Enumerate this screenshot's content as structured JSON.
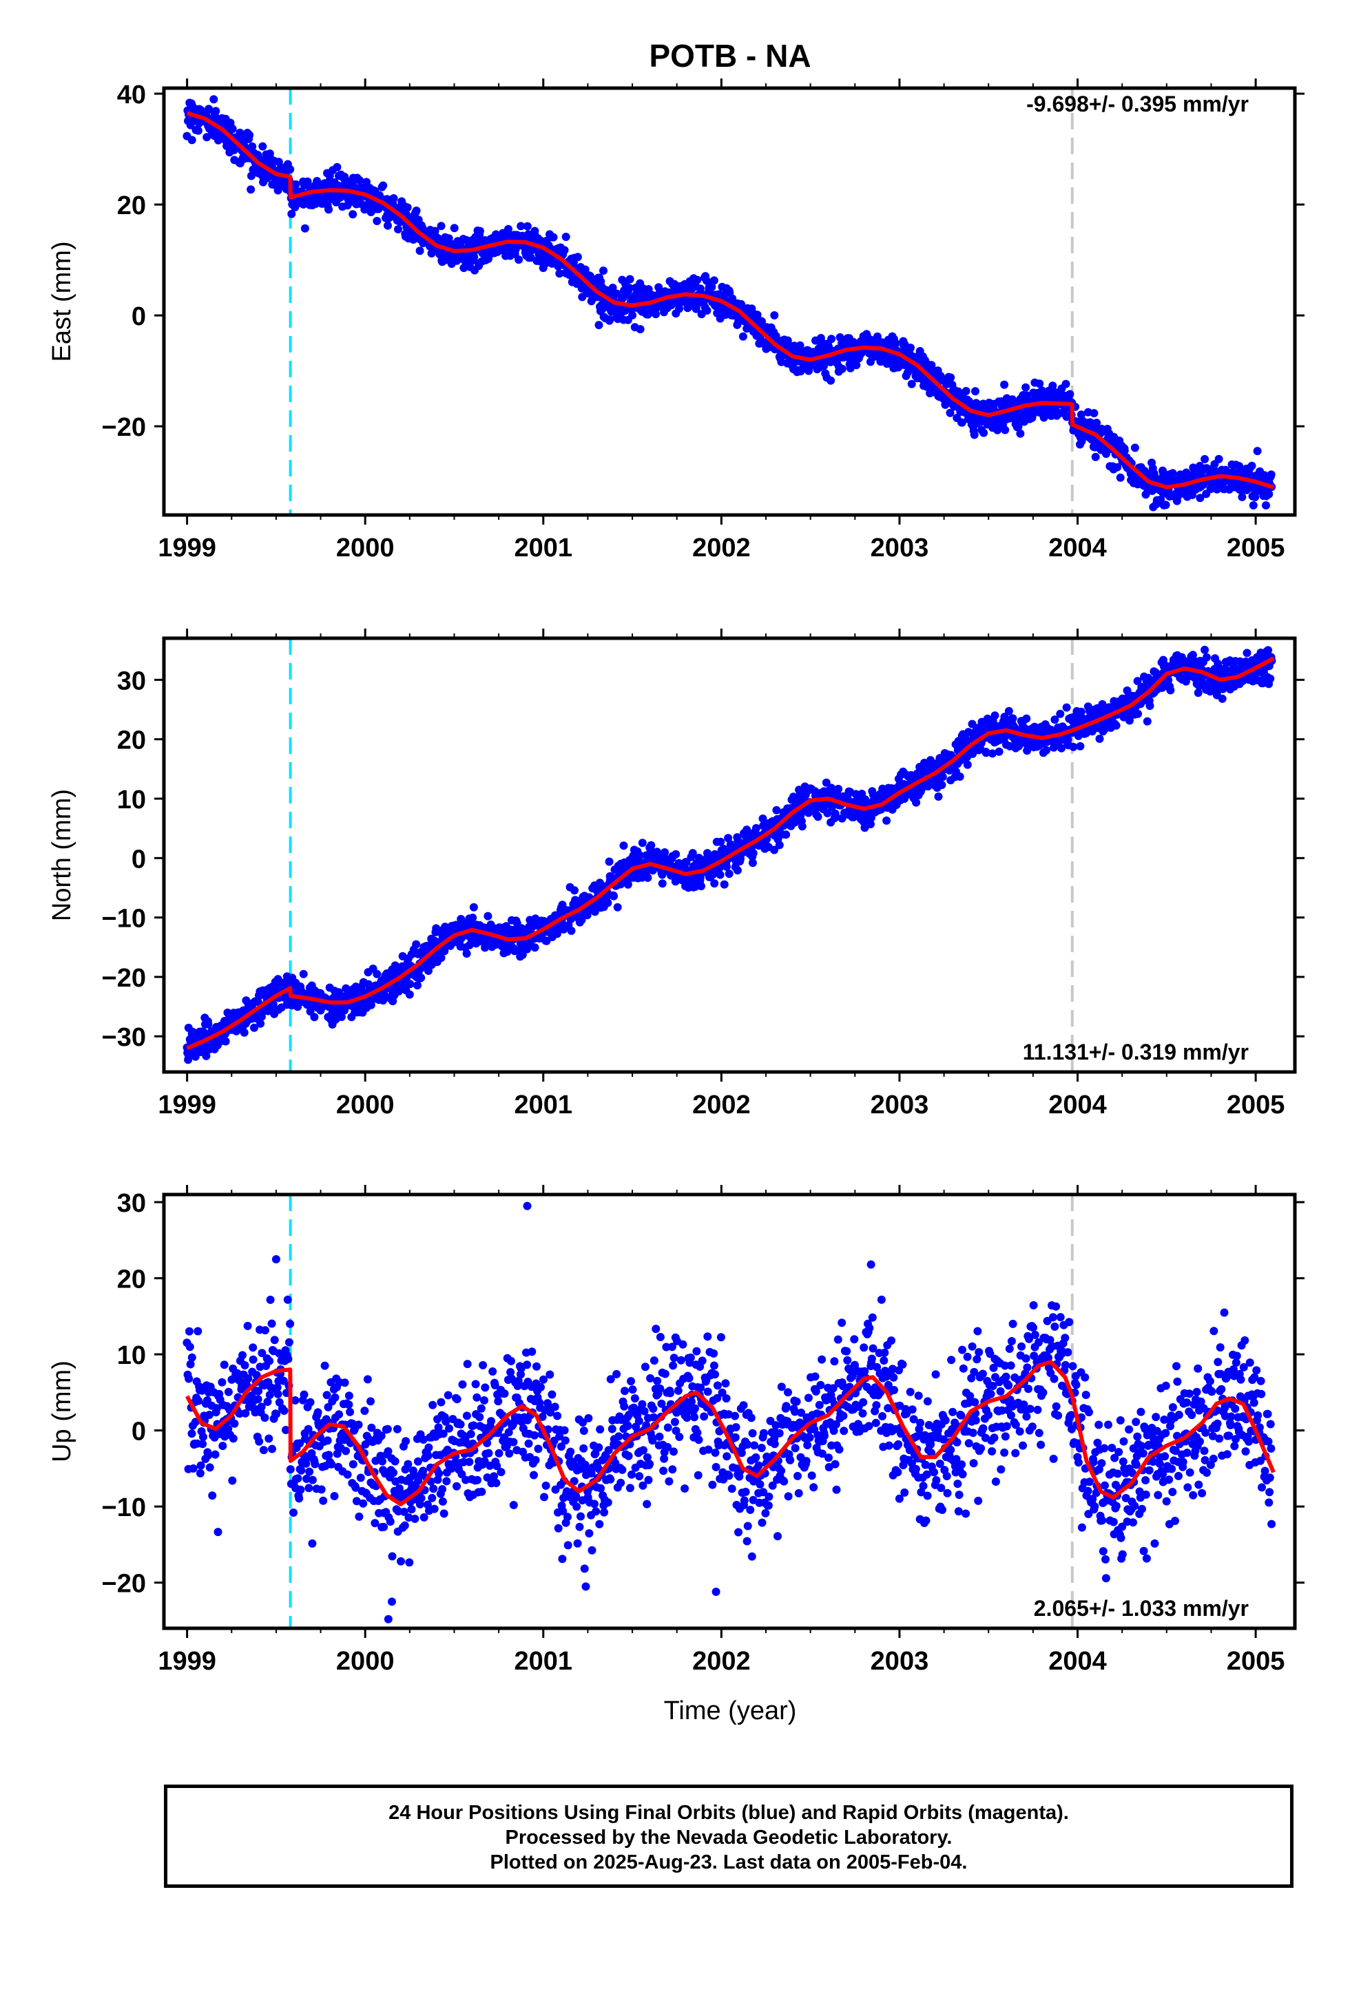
{
  "title": "POTB - NA",
  "footer": {
    "line1": "24 Hour Positions Using Final Orbits (blue) and Rapid Orbits (magenta).",
    "line2": "Processed by the Nevada Geodetic Laboratory.",
    "line3": "Plotted on 2025-Aug-23. Last data on 2005-Feb-04."
  },
  "colors": {
    "points": "#0000ff",
    "model": "#ff0000",
    "equipment_change_line": "#00e5ff",
    "other_step_line": "#c8c8c8",
    "frame": "#000000"
  },
  "chart_data": [
    {
      "type": "scatter",
      "component": "east",
      "ylabel": "East (mm)",
      "xlabel": "",
      "xlim": [
        1998.87,
        2005.22
      ],
      "ylim": [
        -36,
        41
      ],
      "x_ticks": [
        1999,
        2000,
        2001,
        2002,
        2003,
        2004,
        2005
      ],
      "y_ticks": [
        -20,
        0,
        20,
        40
      ],
      "rate_label": "-9.698+/- 0.395 mm/yr",
      "rate_label_position": "top-right",
      "vertical_lines": [
        {
          "x": 1999.58,
          "style": "dashed",
          "color": "cyan"
        },
        {
          "x": 2003.97,
          "style": "dashed",
          "color": "gray"
        }
      ],
      "series": [
        {
          "color": "red",
          "x": [
            1999.0,
            1999.1,
            1999.2,
            1999.3,
            1999.4,
            1999.5,
            1999.579,
            1999.581,
            1999.7,
            1999.8,
            1999.9,
            2000.0,
            2000.1,
            2000.2,
            2000.3,
            2000.4,
            2000.5,
            2000.6,
            2000.7,
            2000.8,
            2000.9,
            2001.0,
            2001.1,
            2001.2,
            2001.3,
            2001.4,
            2001.5,
            2001.6,
            2001.7,
            2001.8,
            2001.9,
            2002.0,
            2002.1,
            2002.2,
            2002.3,
            2002.4,
            2002.5,
            2002.6,
            2002.7,
            2002.8,
            2002.9,
            2003.0,
            2003.1,
            2003.2,
            2003.3,
            2003.4,
            2003.5,
            2003.6,
            2003.7,
            2003.8,
            2003.9,
            2003.969,
            2003.971,
            2004.1,
            2004.2,
            2004.3,
            2004.4,
            2004.5,
            2004.6,
            2004.7,
            2004.8,
            2004.9,
            2005.0,
            2005.1
          ],
          "y": [
            36.5,
            35.5,
            33.5,
            30.5,
            27.5,
            25.5,
            25.0,
            21.3,
            22.3,
            22.6,
            22.5,
            21.8,
            20.3,
            18.0,
            15.0,
            12.6,
            11.6,
            11.8,
            12.6,
            13.3,
            13.2,
            12.2,
            10.2,
            7.3,
            4.3,
            2.3,
            1.8,
            2.3,
            3.3,
            3.8,
            3.5,
            2.6,
            0.8,
            -2.2,
            -5.2,
            -7.4,
            -8.0,
            -7.2,
            -6.2,
            -5.8,
            -6.0,
            -7.0,
            -9.0,
            -12.0,
            -15.0,
            -17.2,
            -18.0,
            -17.2,
            -16.3,
            -15.8,
            -15.9,
            -16.0,
            -19.7,
            -21.5,
            -24.2,
            -27.2,
            -30.0,
            -31.0,
            -30.5,
            -29.6,
            -29.0,
            -29.3,
            -30.0,
            -31.0
          ]
        }
      ]
    },
    {
      "type": "scatter",
      "component": "north",
      "ylabel": "North (mm)",
      "xlabel": "",
      "xlim": [
        1998.87,
        2005.22
      ],
      "ylim": [
        -36,
        37
      ],
      "x_ticks": [
        1999,
        2000,
        2001,
        2002,
        2003,
        2004,
        2005
      ],
      "y_ticks": [
        -30,
        -20,
        -10,
        0,
        10,
        20,
        30
      ],
      "rate_label": "11.131+/- 0.319 mm/yr",
      "rate_label_position": "bottom-right",
      "vertical_lines": [
        {
          "x": 1999.58,
          "style": "dashed",
          "color": "cyan"
        },
        {
          "x": 2003.97,
          "style": "dashed",
          "color": "gray"
        }
      ],
      "series": [
        {
          "color": "red",
          "x": [
            1999.0,
            1999.1,
            1999.2,
            1999.3,
            1999.4,
            1999.5,
            1999.579,
            1999.581,
            1999.7,
            1999.8,
            1999.9,
            2000.0,
            2000.1,
            2000.2,
            2000.3,
            2000.4,
            2000.5,
            2000.6,
            2000.7,
            2000.8,
            2000.9,
            2001.0,
            2001.1,
            2001.2,
            2001.3,
            2001.4,
            2001.5,
            2001.6,
            2001.7,
            2001.8,
            2001.9,
            2002.0,
            2002.1,
            2002.2,
            2002.3,
            2002.4,
            2002.5,
            2002.6,
            2002.7,
            2002.8,
            2002.9,
            2003.0,
            2003.1,
            2003.2,
            2003.3,
            2003.4,
            2003.5,
            2003.6,
            2003.7,
            2003.8,
            2003.9,
            2003.97,
            2004.1,
            2004.2,
            2004.3,
            2004.4,
            2004.5,
            2004.6,
            2004.7,
            2004.8,
            2004.9,
            2005.0,
            2005.1
          ],
          "y": [
            -32.0,
            -30.7,
            -29.2,
            -27.3,
            -25.2,
            -23.2,
            -21.9,
            -23.2,
            -23.7,
            -24.3,
            -24.3,
            -23.3,
            -21.8,
            -20.0,
            -17.8,
            -15.2,
            -13.0,
            -12.1,
            -12.8,
            -13.7,
            -13.5,
            -12.0,
            -10.2,
            -8.7,
            -6.7,
            -4.2,
            -1.8,
            -1.0,
            -1.8,
            -2.7,
            -2.1,
            -0.5,
            1.3,
            3.0,
            5.0,
            7.7,
            9.7,
            10.0,
            9.0,
            8.3,
            9.0,
            11.0,
            12.7,
            14.3,
            16.4,
            19.0,
            21.0,
            21.5,
            20.7,
            20.2,
            20.8,
            21.5,
            23.0,
            24.3,
            25.7,
            28.0,
            31.0,
            31.9,
            31.3,
            30.0,
            30.5,
            32.0,
            33.6
          ]
        }
      ]
    },
    {
      "type": "scatter",
      "component": "up",
      "ylabel": "Up (mm)",
      "xlabel": "Time (year)",
      "xlim": [
        1998.87,
        2005.22
      ],
      "ylim": [
        -26,
        31
      ],
      "x_ticks": [
        1999,
        2000,
        2001,
        2002,
        2003,
        2004,
        2005
      ],
      "y_ticks": [
        -20,
        -10,
        0,
        10,
        20,
        30
      ],
      "rate_label": "2.065+/- 1.033 mm/yr",
      "rate_label_position": "bottom-right",
      "vertical_lines": [
        {
          "x": 1999.58,
          "style": "dashed",
          "color": "cyan"
        },
        {
          "x": 2003.97,
          "style": "dashed",
          "color": "gray"
        }
      ],
      "outliers": [
        {
          "x": 2000.91,
          "y": 29.5
        },
        {
          "x": 2001.97,
          "y": -21.2
        },
        {
          "x": 2000.13,
          "y": -24.8
        },
        {
          "x": 1999.5,
          "y": 22.5
        },
        {
          "x": 2002.84,
          "y": 21.8
        },
        {
          "x": 2000.15,
          "y": -22.5
        }
      ],
      "series": [
        {
          "color": "red",
          "x": [
            1999.0,
            1999.08,
            1999.16,
            1999.25,
            1999.33,
            1999.42,
            1999.5,
            1999.579,
            1999.581,
            1999.65,
            1999.72,
            1999.8,
            1999.88,
            1999.96,
            2000.04,
            2000.12,
            2000.2,
            2000.3,
            2000.4,
            2000.5,
            2000.6,
            2000.7,
            2000.8,
            2000.88,
            2000.96,
            2001.04,
            2001.12,
            2001.2,
            2001.3,
            2001.4,
            2001.5,
            2001.6,
            2001.7,
            2001.8,
            2001.86,
            2001.95,
            2002.04,
            2002.12,
            2002.2,
            2002.3,
            2002.4,
            2002.5,
            2002.6,
            2002.7,
            2002.8,
            2002.85,
            2002.93,
            2003.02,
            2003.12,
            2003.2,
            2003.3,
            2003.4,
            2003.5,
            2003.6,
            2003.7,
            2003.78,
            2003.85,
            2003.93,
            2003.97,
            2004.05,
            2004.13,
            2004.2,
            2004.3,
            2004.4,
            2004.5,
            2004.6,
            2004.7,
            2004.78,
            2004.85,
            2004.93,
            2005.0,
            2005.1
          ],
          "y": [
            4.5,
            1.0,
            0.2,
            2.0,
            5.0,
            7.0,
            7.8,
            8.0,
            -4.0,
            -2.8,
            -0.8,
            0.8,
            0.5,
            -2.0,
            -5.5,
            -8.5,
            -9.7,
            -8.0,
            -4.5,
            -3.0,
            -2.5,
            -0.5,
            2.0,
            3.2,
            2.0,
            -2.0,
            -6.5,
            -8.0,
            -6.5,
            -3.0,
            -0.8,
            0.2,
            2.5,
            4.5,
            5.0,
            3.0,
            -1.0,
            -5.0,
            -6.0,
            -3.8,
            -1.0,
            1.0,
            2.0,
            4.5,
            6.8,
            7.0,
            5.0,
            0.5,
            -3.5,
            -3.5,
            -1.0,
            2.5,
            3.8,
            4.5,
            6.5,
            8.5,
            9.0,
            7.0,
            4.5,
            -4.0,
            -8.0,
            -8.8,
            -7.0,
            -3.5,
            -2.0,
            -1.0,
            1.0,
            3.5,
            4.2,
            3.5,
            0.0,
            -5.5
          ]
        }
      ]
    }
  ]
}
